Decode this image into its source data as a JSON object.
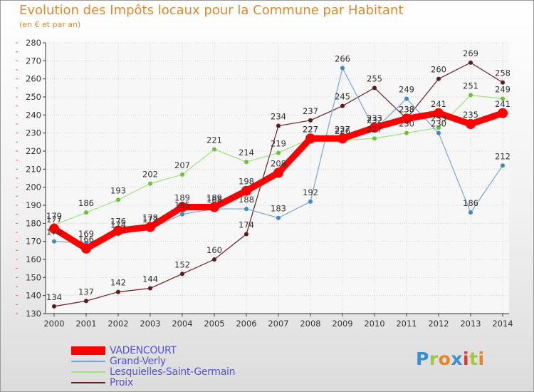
{
  "header": {
    "title": "Evolution des Impôts locaux pour la Commune par Habitant",
    "subtitle": "(en € et par an)"
  },
  "logo": {
    "text": "Proxiti",
    "colors": [
      "#3b8fd6",
      "#9ccc3a",
      "#f0821e",
      "#3b8fd6",
      "#e8352a",
      "#9ccc3a",
      "#f0821e"
    ]
  },
  "chart_data": {
    "type": "line",
    "title": "Evolution des Impôts locaux pour la Commune par Habitant",
    "subtitle": "(en € et par an)",
    "xlabel": "",
    "ylabel": "",
    "x": [
      2000,
      2001,
      2002,
      2003,
      2004,
      2005,
      2006,
      2007,
      2008,
      2009,
      2010,
      2011,
      2012,
      2013,
      2014
    ],
    "ylim": [
      130,
      280
    ],
    "yticks": [
      130,
      140,
      150,
      160,
      170,
      180,
      190,
      200,
      210,
      220,
      230,
      240,
      250,
      260,
      270,
      280
    ],
    "grid": true,
    "legend_position": "bottom-left",
    "series": [
      {
        "name": "Proix",
        "color": "#6b1f22",
        "marker": "#5c1a1c",
        "width": 1.2,
        "values": [
          134,
          137,
          142,
          144,
          152,
          160,
          174,
          234,
          237,
          245,
          255,
          238,
          260,
          269,
          258
        ]
      },
      {
        "name": "Lesquielles-Saint-Germain",
        "color": "#9ee37a",
        "marker": "#6ac23a",
        "width": 1.2,
        "values": [
          179,
          186,
          193,
          202,
          207,
          221,
          214,
          219,
          227,
          226,
          227,
          230,
          233,
          251,
          249
        ]
      },
      {
        "name": "Grand-Verly",
        "color": "#76a7d2",
        "marker": "#3e86c4",
        "width": 1.2,
        "values": [
          170,
          169,
          174,
          177,
          185,
          188,
          188,
          183,
          192,
          266,
          232,
          249,
          230,
          186,
          212
        ]
      },
      {
        "name": "VADENCOURT",
        "color": "#ff0000",
        "marker": "#ff0000",
        "width": 9,
        "values": [
          177,
          166,
          176,
          178,
          189,
          189,
          198,
          208,
          227,
          227,
          233,
          238,
          241,
          235,
          241
        ]
      }
    ]
  }
}
